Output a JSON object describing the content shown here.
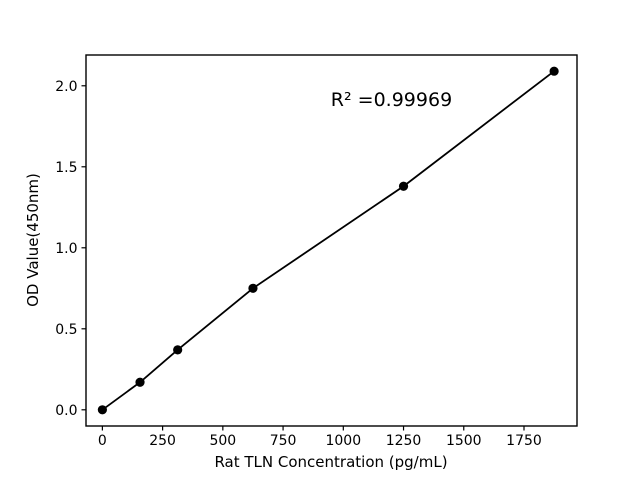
{
  "figure": {
    "background": "#ffffff",
    "foreground": "#000000"
  },
  "chart_data": {
    "type": "scatter",
    "title": "",
    "xlabel": "Rat TLN Concentration (pg/mL)",
    "ylabel": "OD Value(450nm)",
    "series": [
      {
        "name": "standard-curve",
        "x": [
          0,
          156.25,
          312.5,
          625,
          1250,
          1875
        ],
        "y": [
          0.0,
          0.17,
          0.37,
          0.75,
          1.38,
          2.09
        ]
      }
    ],
    "fit_line": true,
    "annotation": {
      "text": "R² =0.99969",
      "x": 1200,
      "y": 1.91
    },
    "x_tick_values": [
      0,
      250,
      500,
      750,
      1000,
      1250,
      1500,
      1750
    ],
    "x_tick_labels": [
      "0",
      "250",
      "500",
      "750",
      "1000",
      "1250",
      "1500",
      "1750"
    ],
    "y_tick_values": [
      0.0,
      0.5,
      1.0,
      1.5,
      2.0
    ],
    "y_tick_labels": [
      "0.0",
      "0.5",
      "1.0",
      "1.5",
      "2.0"
    ],
    "xlim": [
      -68,
      1970
    ],
    "ylim": [
      -0.1,
      2.19
    ],
    "grid": false,
    "legend": "none",
    "marker_color": "#000000",
    "line_color": "#000000"
  }
}
